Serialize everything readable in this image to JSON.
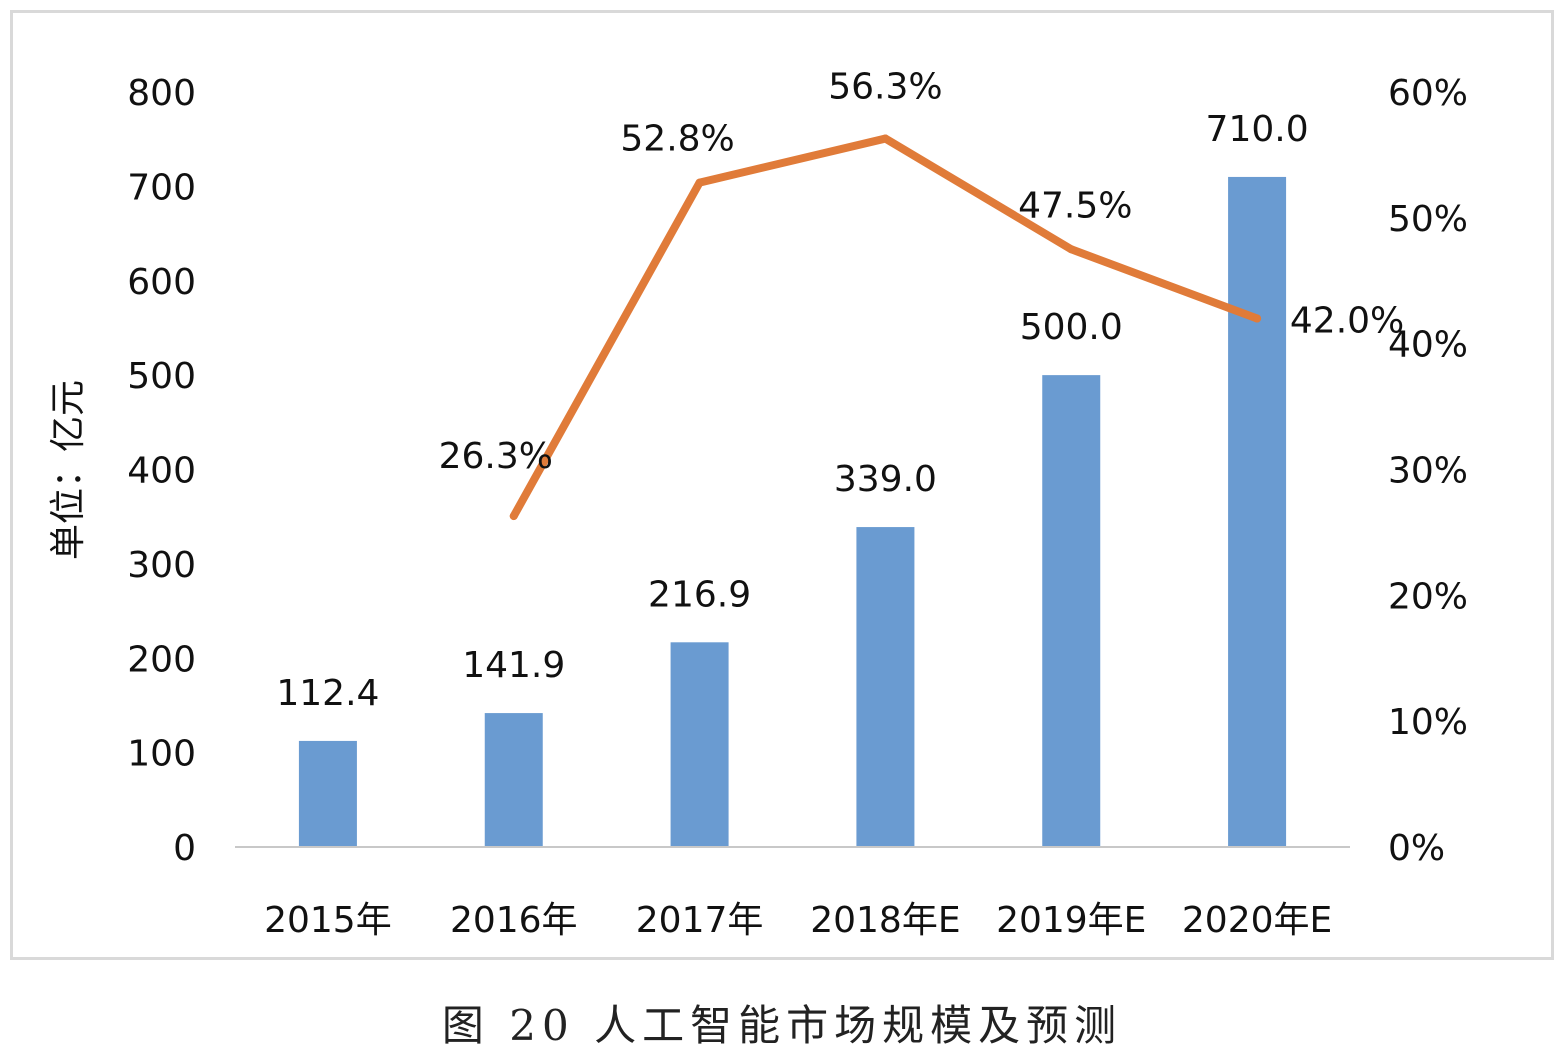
{
  "caption": "图 20 人工智能市场规模及预测",
  "chart_data": {
    "type": "bar",
    "categories": [
      "2015年",
      "2016年",
      "2017年",
      "2018年E",
      "2019年E",
      "2020年E"
    ],
    "series": [
      {
        "type": "bar",
        "axis": "left",
        "values": [
          112.4,
          141.9,
          216.9,
          339.0,
          500.0,
          710.0
        ],
        "labels": [
          "112.4",
          "141.9",
          "216.9",
          "339.0",
          "500.0",
          "710.0"
        ],
        "color": "#6a9bd1"
      },
      {
        "type": "line",
        "axis": "right",
        "values": [
          null,
          26.3,
          52.8,
          56.3,
          47.5,
          42.0
        ],
        "labels": [
          "",
          "26.3%",
          "52.8%",
          "56.3%",
          "47.5%",
          "42.0%"
        ],
        "color": "#e07b39"
      }
    ],
    "ylabel": "单位：亿元",
    "ylim": [
      0,
      800
    ],
    "y_ticks": [
      "0",
      "100",
      "200",
      "300",
      "400",
      "500",
      "600",
      "700",
      "800"
    ],
    "y2lim": [
      0,
      60
    ],
    "y2_ticks": [
      "0%",
      "10%",
      "20%",
      "30%",
      "40%",
      "50%",
      "60%"
    ],
    "grid": false,
    "legend": "none"
  }
}
